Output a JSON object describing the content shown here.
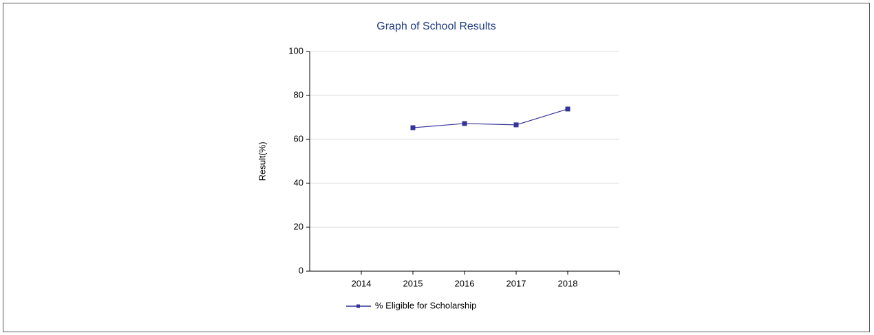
{
  "chart_data": {
    "type": "line",
    "title": "Graph of School Results",
    "y_label": "Result(%)",
    "categories": [
      "2014",
      "2015",
      "2016",
      "2017",
      "2018"
    ],
    "series": [
      {
        "name": "% Eligible for Scholarship",
        "color": "#333399",
        "values": [
          null,
          65.3,
          67.2,
          66.6,
          73.8
        ]
      }
    ],
    "ylim": [
      0,
      100
    ],
    "yticks": [
      0,
      20,
      40,
      60,
      80,
      100
    ],
    "grid": true,
    "legend": "bottom"
  }
}
